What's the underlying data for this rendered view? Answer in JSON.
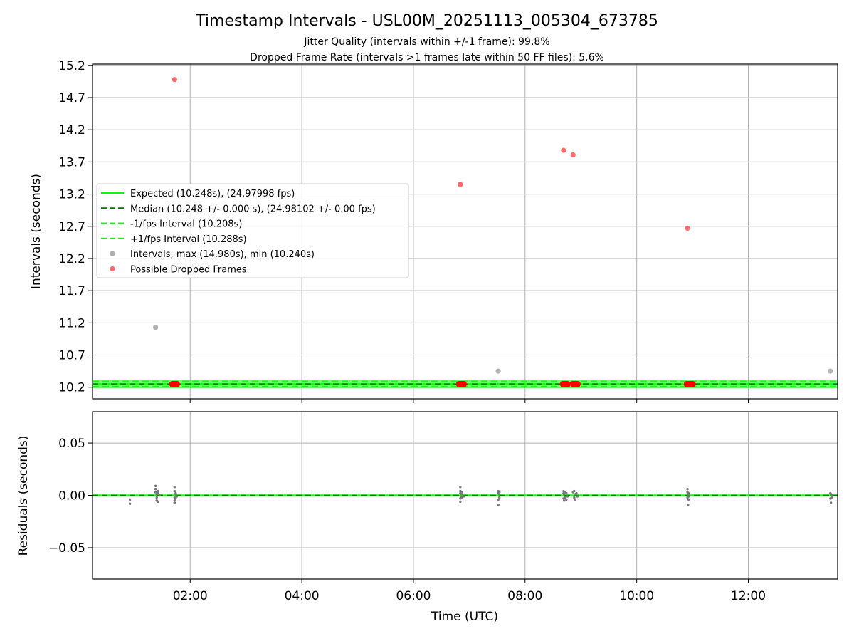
{
  "chart_data": {
    "type": "scatter",
    "title": "Timestamp Intervals - USL00M_20251113_005304_673785",
    "subtitles": [
      "Jitter Quality (intervals within +/-1 frame): 99.8%",
      "Dropped Frame Rate (intervals >1 frames late within 50 FF files): 5.6%"
    ],
    "xlabel": "Time (UTC)",
    "x_units": "hours",
    "xlim": [
      0.25,
      13.6
    ],
    "x_ticks": [
      2,
      4,
      6,
      8,
      10,
      12
    ],
    "x_tick_labels": [
      "02:00",
      "04:00",
      "06:00",
      "08:00",
      "10:00",
      "12:00"
    ],
    "top_panel": {
      "ylabel": "Intervals (seconds)",
      "ylim": [
        10.02,
        15.22
      ],
      "y_ticks": [
        10.2,
        10.7,
        11.2,
        11.7,
        12.2,
        12.7,
        13.2,
        13.7,
        14.2,
        14.7,
        15.2
      ],
      "y_tick_labels": [
        "10.2",
        "10.7",
        "11.2",
        "11.7",
        "12.2",
        "12.7",
        "13.2",
        "13.7",
        "14.2",
        "14.7",
        "15.2"
      ],
      "legend_location": "center-left",
      "expected": 10.248,
      "median": 10.248,
      "lower": 10.208,
      "upper": 10.288,
      "series": [
        {
          "name": "Expected (10.248s), (24.97998 fps)",
          "style": "solid-line",
          "color": "#00ff00"
        },
        {
          "name": "Median (10.248 +/- 0.000 s), (24.98102 +/- 0.00 fps)",
          "style": "dashed-line",
          "color": "#007a00"
        },
        {
          "name": "-1/fps Interval (10.208s)",
          "style": "dashed-line",
          "color": "#22ee22"
        },
        {
          "name": "+1/fps Interval (10.288s)",
          "style": "dashed-line",
          "color": "#22ee22"
        },
        {
          "name": "Intervals, max (14.980s), min (10.240s)",
          "style": "marker",
          "color": "#999999",
          "x": [
            1.38,
            7.52,
            13.47
          ],
          "y": [
            11.13,
            10.45,
            10.45
          ]
        },
        {
          "name": "Possible Dropped Frames",
          "style": "marker",
          "color": "#ff4444",
          "x": [
            1.72,
            6.84,
            8.69,
            8.86,
            10.91
          ],
          "y": [
            14.98,
            13.35,
            13.88,
            13.81,
            12.67
          ]
        }
      ],
      "dropped_markers_on_band": {
        "color": "#ff0000",
        "x": [
          1.68,
          1.7,
          1.72,
          1.74,
          1.76,
          6.82,
          6.84,
          6.86,
          6.88,
          6.9,
          8.68,
          8.7,
          8.72,
          8.74,
          8.76,
          8.86,
          8.88,
          8.9,
          8.92,
          8.94,
          10.9,
          10.92,
          10.94,
          10.96,
          10.98,
          11.0
        ]
      }
    },
    "bottom_panel": {
      "ylabel": "Residuals (seconds)",
      "ylim": [
        -0.08,
        0.08
      ],
      "y_ticks": [
        0.05,
        0.0,
        -0.05
      ],
      "y_tick_labels": [
        "0.05",
        "0.00",
        "−0.05"
      ],
      "residuals": {
        "color": "#777777",
        "x": [
          0.92,
          0.92,
          1.38,
          1.38,
          1.38,
          1.4,
          1.4,
          1.4,
          1.42,
          1.42,
          1.42,
          1.45,
          1.72,
          1.72,
          1.72,
          1.72,
          1.72,
          1.74,
          1.74,
          1.74,
          1.76,
          6.84,
          6.84,
          6.84,
          6.84,
          6.84,
          6.86,
          6.86,
          6.86,
          6.9,
          7.52,
          7.52,
          7.52,
          7.52,
          7.54,
          7.54,
          7.54,
          8.69,
          8.69,
          8.69,
          8.7,
          8.7,
          8.72,
          8.72,
          8.74,
          8.74,
          8.76,
          8.86,
          8.88,
          8.88,
          8.9,
          8.9,
          8.92,
          8.94,
          10.91,
          10.91,
          10.91,
          10.92,
          10.92,
          10.93,
          10.93,
          10.94,
          13.47,
          13.47,
          13.48,
          13.48,
          13.49,
          13.5
        ],
        "y": [
          -0.004,
          -0.008,
          0.009,
          0.006,
          0.003,
          0.001,
          -0.002,
          -0.005,
          -0.006,
          0.002,
          0.004,
          0.0,
          0.008,
          0.004,
          -0.002,
          -0.005,
          -0.007,
          0.001,
          -0.003,
          0.002,
          -0.001,
          0.008,
          0.004,
          0.002,
          -0.003,
          -0.006,
          0.001,
          -0.002,
          0.003,
          -0.001,
          0.004,
          0.002,
          -0.004,
          -0.009,
          0.001,
          -0.002,
          0.003,
          0.004,
          0.002,
          -0.003,
          -0.005,
          0.001,
          -0.002,
          0.003,
          -0.004,
          0.002,
          -0.001,
          0.003,
          0.004,
          -0.002,
          0.001,
          -0.004,
          0.002,
          -0.001,
          0.006,
          0.003,
          -0.002,
          -0.009,
          0.001,
          -0.004,
          0.002,
          -0.001,
          0.002,
          -0.003,
          -0.007,
          0.001,
          -0.002,
          0.0
        ]
      }
    }
  }
}
